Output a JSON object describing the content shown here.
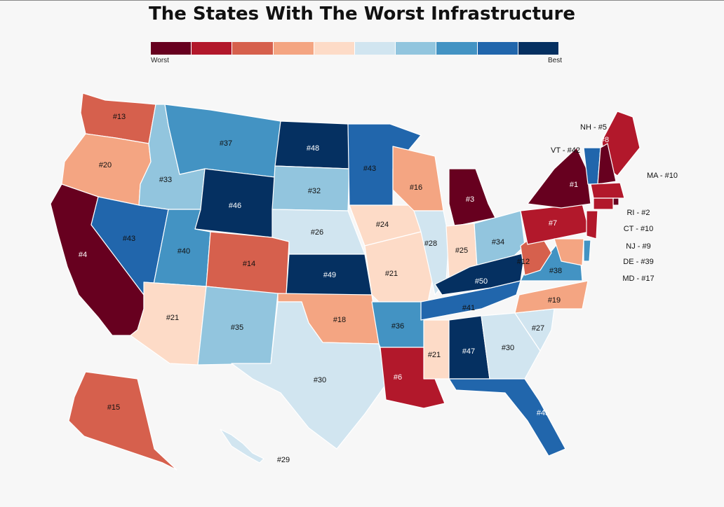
{
  "title": "The States With The Worst Infrastructure",
  "legend": {
    "low_label": "Worst",
    "high_label": "Best",
    "colors": [
      "#67001f",
      "#b2182b",
      "#d6604d",
      "#f4a582",
      "#fddbc7",
      "#d1e5f0",
      "#92c5de",
      "#4393c3",
      "#2166ac",
      "#053061"
    ]
  },
  "states": [
    {
      "code": "WA",
      "rank": 13,
      "label": "#13"
    },
    {
      "code": "OR",
      "rank": 20,
      "label": "#20"
    },
    {
      "code": "CA",
      "rank": 4,
      "label": "#4"
    },
    {
      "code": "NV",
      "rank": 43,
      "label": "#43"
    },
    {
      "code": "ID",
      "rank": 33,
      "label": "#33"
    },
    {
      "code": "MT",
      "rank": 37,
      "label": "#37"
    },
    {
      "code": "WY",
      "rank": 46,
      "label": "#46"
    },
    {
      "code": "UT",
      "rank": 40,
      "label": "#40"
    },
    {
      "code": "AZ",
      "rank": 21,
      "label": "#21"
    },
    {
      "code": "CO",
      "rank": 14,
      "label": "#14"
    },
    {
      "code": "NM",
      "rank": 35,
      "label": "#35"
    },
    {
      "code": "ND",
      "rank": 48,
      "label": "#48"
    },
    {
      "code": "SD",
      "rank": 32,
      "label": "#32"
    },
    {
      "code": "NE",
      "rank": 26,
      "label": "#26"
    },
    {
      "code": "KS",
      "rank": 49,
      "label": "#49"
    },
    {
      "code": "OK",
      "rank": 18,
      "label": "#18"
    },
    {
      "code": "TX",
      "rank": 30,
      "label": "#30"
    },
    {
      "code": "MN",
      "rank": 43,
      "label": "#43"
    },
    {
      "code": "IA",
      "rank": 24,
      "label": "#24"
    },
    {
      "code": "MO",
      "rank": 21,
      "label": "#21"
    },
    {
      "code": "AR",
      "rank": 36,
      "label": "#36"
    },
    {
      "code": "LA",
      "rank": 6,
      "label": "#6"
    },
    {
      "code": "WI",
      "rank": 16,
      "label": "#16"
    },
    {
      "code": "IL",
      "rank": 28,
      "label": "#28"
    },
    {
      "code": "MI",
      "rank": 3,
      "label": "#3"
    },
    {
      "code": "IN",
      "rank": 25,
      "label": "#25"
    },
    {
      "code": "OH",
      "rank": 34,
      "label": "#34"
    },
    {
      "code": "KY",
      "rank": 50,
      "label": "#50"
    },
    {
      "code": "TN",
      "rank": 41,
      "label": "#41"
    },
    {
      "code": "MS",
      "rank": 21,
      "label": "#21"
    },
    {
      "code": "AL",
      "rank": 47,
      "label": "#47"
    },
    {
      "code": "GA",
      "rank": 30,
      "label": "#30"
    },
    {
      "code": "FL",
      "rank": 45,
      "label": "#45"
    },
    {
      "code": "SC",
      "rank": 27,
      "label": "#27"
    },
    {
      "code": "NC",
      "rank": 19,
      "label": "#19"
    },
    {
      "code": "VA",
      "rank": 38,
      "label": "#38"
    },
    {
      "code": "WV",
      "rank": 12,
      "label": "#12"
    },
    {
      "code": "PA",
      "rank": 7,
      "label": "#7"
    },
    {
      "code": "NY",
      "rank": 1,
      "label": "#1"
    },
    {
      "code": "ME",
      "rank": 8,
      "label": "#8"
    },
    {
      "code": "AK",
      "rank": 15,
      "label": "#15"
    },
    {
      "code": "HI",
      "rank": 29,
      "label": "#29"
    },
    {
      "code": "VT",
      "rank": 42,
      "label": "VT - #42"
    },
    {
      "code": "NH",
      "rank": 5,
      "label": "NH - #5"
    },
    {
      "code": "MA",
      "rank": 10,
      "label": "MA - #10"
    },
    {
      "code": "RI",
      "rank": 2,
      "label": "RI - #2"
    },
    {
      "code": "CT",
      "rank": 10,
      "label": "CT - #10"
    },
    {
      "code": "NJ",
      "rank": 9,
      "label": "NJ - #9"
    },
    {
      "code": "DE",
      "rank": 39,
      "label": "DE - #39"
    },
    {
      "code": "MD",
      "rank": 17,
      "label": "MD - #17"
    }
  ]
}
